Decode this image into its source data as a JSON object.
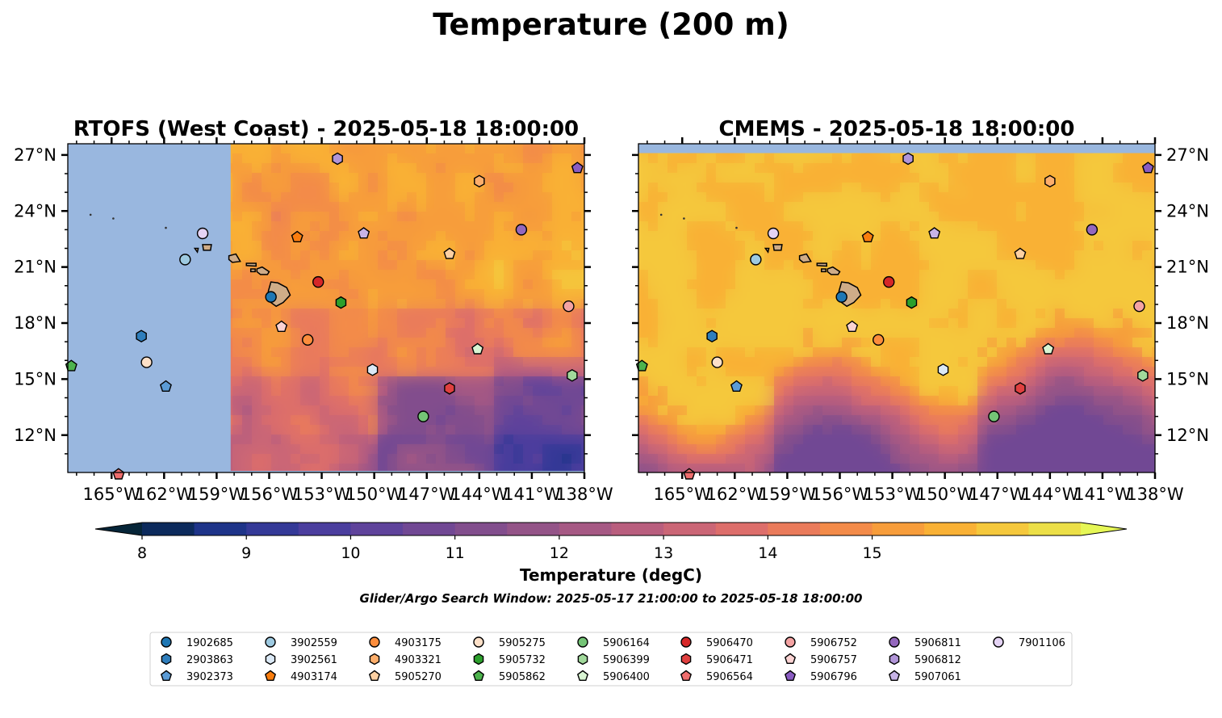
{
  "figure": {
    "title": "Temperature (200 m)",
    "search_window": "Glider/Argo Search Window: 2025-05-17 21:00:00 to 2025-05-18 18:00:00"
  },
  "colorbar": {
    "label": "Temperature (degC)",
    "ticks": [
      "8",
      "9",
      "10",
      "11",
      "12",
      "13",
      "14",
      "15"
    ],
    "min": 8,
    "max": 15.5,
    "step": 0.5,
    "extend": "both",
    "colors": [
      "#062538",
      "#0c2a5c",
      "#1e3489",
      "#343997",
      "#4b3e9e",
      "#5f439b",
      "#714894",
      "#824e8d",
      "#945488",
      "#a65984",
      "#b95e7e",
      "#cb6676",
      "#dd6e6b",
      "#ea7b5b",
      "#f38b49",
      "#f79d3b",
      "#f9b135",
      "#f5c83c",
      "#ecdf47",
      "#e6f756"
    ],
    "land_color": "#99b7df",
    "island_color": "#cfac88"
  },
  "chart_data": [
    {
      "type": "map",
      "title": "RTOFS (West Coast) - 2025-05-18 18:00:00",
      "xlim": [
        -167.5,
        -138
      ],
      "ylim": [
        10,
        27.6
      ],
      "xticks": [
        "165°W",
        "162°W",
        "159°W",
        "156°W",
        "153°W",
        "150°W",
        "147°W",
        "144°W",
        "141°W",
        "138°W"
      ],
      "yticks": [
        "27°N",
        "24°N",
        "21°N",
        "18°N",
        "15°N",
        "12°N"
      ],
      "ytick_side": "left",
      "model_coverage_west_lon": -158.2,
      "background": "warm field, mostly ≥15.5 degC north of 18°N with patches of 13–15 degC; cooler 10.5–12.5 degC in southeast quadrant"
    },
    {
      "type": "map",
      "title": "CMEMS - 2025-05-18 18:00:00",
      "xlim": [
        -167.5,
        -138
      ],
      "ylim": [
        10,
        27.6
      ],
      "xticks": [
        "165°W",
        "162°W",
        "159°W",
        "156°W",
        "153°W",
        "150°W",
        "147°W",
        "144°W",
        "141°W",
        "138°W"
      ],
      "yticks": [
        "27°N",
        "24°N",
        "21°N",
        "18°N",
        "15°N",
        "12°N"
      ],
      "ytick_side": "right",
      "no_data_north_of_lat": 27.1,
      "background": "≥15.5 degC north of ~15°N; front with cooler 10.5–13 degC water to the south"
    }
  ],
  "floats": [
    {
      "id": "1902685",
      "color": "#1f77b4",
      "marker": "circle",
      "lon": -155.9,
      "lat": 19.4
    },
    {
      "id": "2903863",
      "color": "#2f7ebc",
      "marker": "hexagon",
      "lon": -163.3,
      "lat": 17.3
    },
    {
      "id": "3902373",
      "color": "#5b9bd5",
      "marker": "pentagon",
      "lon": -161.9,
      "lat": 14.6
    },
    {
      "id": "3902559",
      "color": "#9ecae1",
      "marker": "circle",
      "lon": -160.8,
      "lat": 21.4
    },
    {
      "id": "3902561",
      "color": "#dbe9f6",
      "marker": "hexagon",
      "lon": -150.1,
      "lat": 15.5
    },
    {
      "id": "4903174",
      "color": "#f97d0e",
      "marker": "pentagon",
      "lon": -154.4,
      "lat": 22.6
    },
    {
      "id": "4903175",
      "color": "#fd8d3c",
      "marker": "circle",
      "lon": -153.8,
      "lat": 17.1
    },
    {
      "id": "4903321",
      "color": "#fdae6b",
      "marker": "hexagon",
      "lon": -144.0,
      "lat": 25.6
    },
    {
      "id": "5905270",
      "color": "#fdd0a2",
      "marker": "pentagon",
      "lon": -145.7,
      "lat": 21.7
    },
    {
      "id": "5905275",
      "color": "#fde0c8",
      "marker": "circle",
      "lon": -163.0,
      "lat": 15.9
    },
    {
      "id": "5905732",
      "color": "#2ca02c",
      "marker": "hexagon",
      "lon": -151.9,
      "lat": 19.1
    },
    {
      "id": "5905862",
      "color": "#4db34d",
      "marker": "pentagon",
      "lon": -167.3,
      "lat": 15.7
    },
    {
      "id": "5906164",
      "color": "#74c476",
      "marker": "circle",
      "lon": -147.2,
      "lat": 13.0
    },
    {
      "id": "5906399",
      "color": "#a1d99b",
      "marker": "hexagon",
      "lon": -138.7,
      "lat": 15.2
    },
    {
      "id": "5906400",
      "color": "#d9f5d3",
      "marker": "pentagon",
      "lon": -144.1,
      "lat": 16.6
    },
    {
      "id": "5906470",
      "color": "#d62728",
      "marker": "circle",
      "lon": -153.2,
      "lat": 20.2
    },
    {
      "id": "5906471",
      "color": "#e0403f",
      "marker": "hexagon",
      "lon": -145.7,
      "lat": 14.5
    },
    {
      "id": "5906564",
      "color": "#ef6d6d",
      "marker": "pentagon",
      "lon": -164.6,
      "lat": 9.9
    },
    {
      "id": "5906752",
      "color": "#f4a3a3",
      "marker": "circle",
      "lon": -138.9,
      "lat": 18.9
    },
    {
      "id": "5906757",
      "color": "#fbd3d3",
      "marker": "pentagon",
      "lon": -155.3,
      "lat": 17.8
    },
    {
      "id": "5906796",
      "color": "#8a5cc2",
      "marker": "pentagon",
      "lon": -138.4,
      "lat": 26.3
    },
    {
      "id": "5906811",
      "color": "#9467bd",
      "marker": "circle",
      "lon": -141.6,
      "lat": 23.0
    },
    {
      "id": "5906812",
      "color": "#b195d8",
      "marker": "hexagon",
      "lon": -152.1,
      "lat": 26.8
    },
    {
      "id": "5907061",
      "color": "#c7b3e6",
      "marker": "pentagon",
      "lon": -150.6,
      "lat": 22.8
    },
    {
      "id": "7901106",
      "color": "#e4d3f4",
      "marker": "circle",
      "lon": -159.8,
      "lat": 22.8
    }
  ],
  "legend": {
    "columns": 9,
    "rows": 3,
    "order": [
      "1902685",
      "2903863",
      "3902373",
      "3902559",
      "3902561",
      "4903174",
      "4903175",
      "4903321",
      "5905270",
      "5905275",
      "5905732",
      "5905862",
      "5906164",
      "5906399",
      "5906400",
      "5906470",
      "5906471",
      "5906564",
      "5906752",
      "5906757",
      "5906796",
      "5906811",
      "5906812",
      "5907061",
      "7901106"
    ]
  }
}
